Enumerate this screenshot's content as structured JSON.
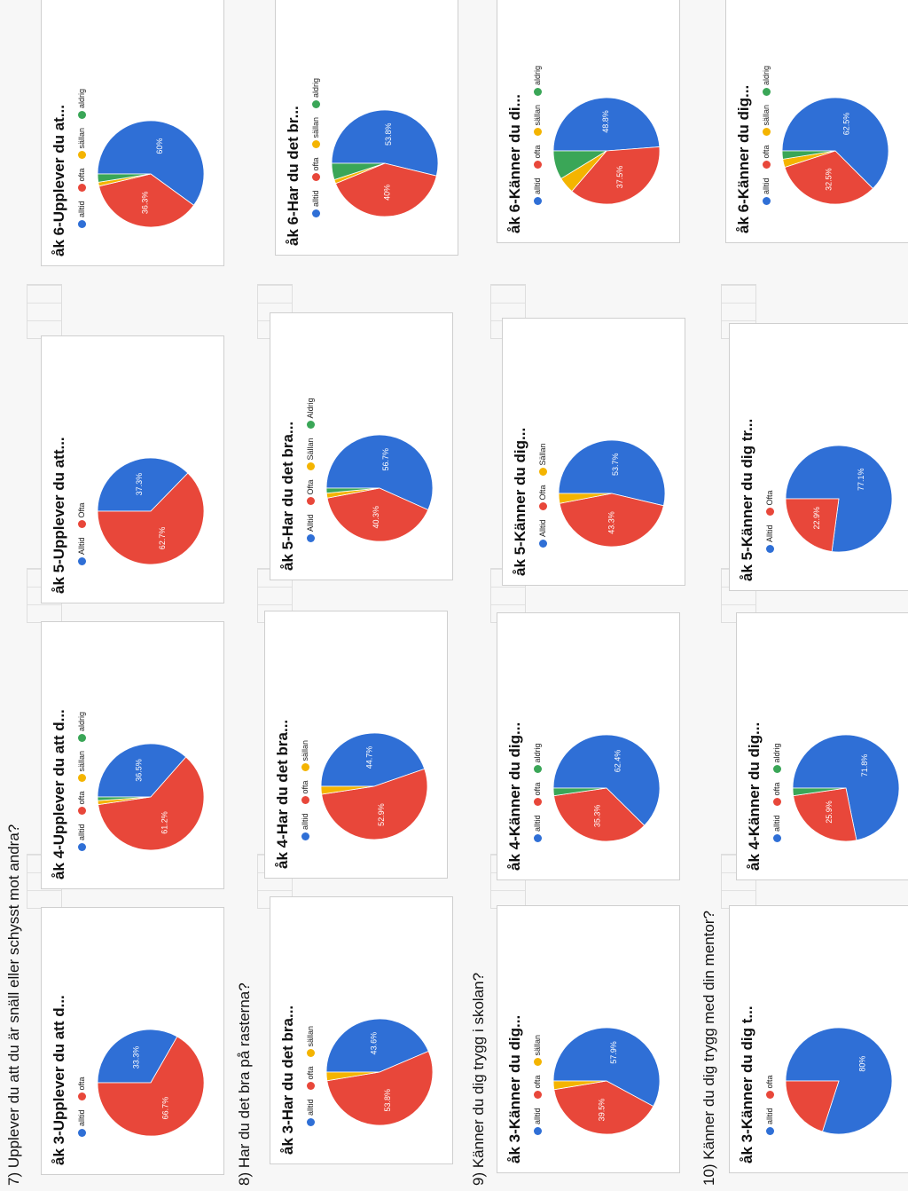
{
  "colors": {
    "blue": "#2f6fd6",
    "red": "#e8473a",
    "yellow": "#f4b400",
    "green": "#3aa657"
  },
  "sections": [
    {
      "title": "7) Upplever du att du är snäll eller schysst mot andra?",
      "charts": [
        {
          "title": "åk 3-Upplever du att d...",
          "legend": [
            "alltid",
            "ofta"
          ],
          "slices": [
            {
              "label": "alltid",
              "value": 33.3,
              "text": "33.3%",
              "color": "blue"
            },
            {
              "label": "ofta",
              "value": 66.7,
              "text": "66.7%",
              "color": "red"
            }
          ]
        },
        {
          "title": "åk 4-Upplever du att d...",
          "legend": [
            "alltid",
            "ofta",
            "sällan",
            "aldrig"
          ],
          "slices": [
            {
              "label": "alltid",
              "value": 36.5,
              "text": "36.5%",
              "color": "blue"
            },
            {
              "label": "ofta",
              "value": 61.2,
              "text": "61.2%",
              "color": "red"
            },
            {
              "label": "sällan",
              "value": 1.2,
              "text": "",
              "color": "yellow"
            },
            {
              "label": "aldrig",
              "value": 1.1,
              "text": "",
              "color": "green"
            }
          ]
        },
        {
          "title": "åk 5-Upplever du att...",
          "legend": [
            "Alltid",
            "Ofta"
          ],
          "slices": [
            {
              "label": "Alltid",
              "value": 37.3,
              "text": "37.3%",
              "color": "blue"
            },
            {
              "label": "Ofta",
              "value": 62.7,
              "text": "62.7%",
              "color": "red"
            }
          ]
        },
        {
          "title": "åk 6-Upplever du at...",
          "legend": [
            "alltid",
            "ofta",
            "sällan",
            "aldrig"
          ],
          "slices": [
            {
              "label": "alltid",
              "value": 60,
              "text": "60%",
              "color": "blue"
            },
            {
              "label": "ofta",
              "value": 36.3,
              "text": "36.3%",
              "color": "red"
            },
            {
              "label": "sällan",
              "value": 1.2,
              "text": "",
              "color": "yellow"
            },
            {
              "label": "aldrig",
              "value": 2.5,
              "text": "",
              "color": "green"
            }
          ]
        }
      ]
    },
    {
      "title": "8) Har du det bra på rasterna?",
      "charts": [
        {
          "title": "åk 3-Har du det bra...",
          "legend": [
            "alltid",
            "ofta",
            "sällan"
          ],
          "slices": [
            {
              "label": "alltid",
              "value": 43.6,
              "text": "43.6%",
              "color": "blue"
            },
            {
              "label": "ofta",
              "value": 53.8,
              "text": "53.8%",
              "color": "red"
            },
            {
              "label": "sällan",
              "value": 2.6,
              "text": "",
              "color": "yellow"
            }
          ]
        },
        {
          "title": "åk 4-Har du det bra...",
          "legend": [
            "alltid",
            "ofta",
            "sällan"
          ],
          "slices": [
            {
              "label": "alltid",
              "value": 44.7,
              "text": "44.7%",
              "color": "blue"
            },
            {
              "label": "ofta",
              "value": 52.9,
              "text": "52.9%",
              "color": "red"
            },
            {
              "label": "sällan",
              "value": 2.4,
              "text": "",
              "color": "yellow"
            }
          ]
        },
        {
          "title": "åk 5-Har du det bra...",
          "legend": [
            "Alltid",
            "Ofta",
            "Sällan",
            "Aldrig"
          ],
          "slices": [
            {
              "label": "Alltid",
              "value": 56.7,
              "text": "56.7%",
              "color": "blue"
            },
            {
              "label": "Ofta",
              "value": 40.3,
              "text": "40.3%",
              "color": "red"
            },
            {
              "label": "Sällan",
              "value": 1.5,
              "text": "",
              "color": "yellow"
            },
            {
              "label": "Aldrig",
              "value": 1.5,
              "text": "",
              "color": "green"
            }
          ]
        },
        {
          "title": "åk 6-Har du det br...",
          "legend": [
            "alltid",
            "ofta",
            "sällan",
            "aldrig"
          ],
          "slices": [
            {
              "label": "alltid",
              "value": 53.8,
              "text": "53.8%",
              "color": "blue"
            },
            {
              "label": "ofta",
              "value": 40,
              "text": "40%",
              "color": "red"
            },
            {
              "label": "sällan",
              "value": 1.2,
              "text": "",
              "color": "yellow"
            },
            {
              "label": "aldrig",
              "value": 5,
              "text": "",
              "color": "green"
            }
          ]
        }
      ]
    },
    {
      "title": "9) Känner du dig trygg i skolan?",
      "charts": [
        {
          "title": "åk 3-Känner du dig...",
          "legend": [
            "alltid",
            "ofta",
            "sällan"
          ],
          "slices": [
            {
              "label": "alltid",
              "value": 57.9,
              "text": "57.9%",
              "color": "blue"
            },
            {
              "label": "ofta",
              "value": 39.5,
              "text": "39.5%",
              "color": "red"
            },
            {
              "label": "sällan",
              "value": 2.6,
              "text": "",
              "color": "yellow"
            }
          ]
        },
        {
          "title": "åk 4-Känner du dig...",
          "legend": [
            "alltid",
            "ofta",
            "aldrig"
          ],
          "slices": [
            {
              "label": "alltid",
              "value": 62.4,
              "text": "62.4%",
              "color": "blue"
            },
            {
              "label": "ofta",
              "value": 35.3,
              "text": "35.3%",
              "color": "red"
            },
            {
              "label": "aldrig",
              "value": 2.3,
              "text": "",
              "color": "green"
            }
          ]
        },
        {
          "title": "åk 5-Känner du dig...",
          "legend": [
            "Alltid",
            "Ofta",
            "Sällan"
          ],
          "slices": [
            {
              "label": "Alltid",
              "value": 53.7,
              "text": "53.7%",
              "color": "blue"
            },
            {
              "label": "Ofta",
              "value": 43.3,
              "text": "43.3%",
              "color": "red"
            },
            {
              "label": "Sällan",
              "value": 3,
              "text": "",
              "color": "yellow"
            }
          ]
        },
        {
          "title": "åk 6-Känner du di...",
          "legend": [
            "alltid",
            "ofta",
            "sällan",
            "aldrig"
          ],
          "slices": [
            {
              "label": "alltid",
              "value": 48.8,
              "text": "48.8%",
              "color": "blue"
            },
            {
              "label": "ofta",
              "value": 37.5,
              "text": "37.5%",
              "color": "red"
            },
            {
              "label": "sällan",
              "value": 5,
              "text": "",
              "color": "yellow"
            },
            {
              "label": "aldrig",
              "value": 8.7,
              "text": "",
              "color": "green"
            }
          ]
        }
      ]
    },
    {
      "title": "10) Känner du dig trygg med din mentor?",
      "charts": [
        {
          "title": "åk 3-Känner du dig t...",
          "legend": [
            "alltid",
            "ofta"
          ],
          "slices": [
            {
              "label": "alltid",
              "value": 80,
              "text": "80%",
              "color": "blue"
            },
            {
              "label": "ofta",
              "value": 20,
              "text": "",
              "color": "red"
            }
          ]
        },
        {
          "title": "åk 4-Känner du dig...",
          "legend": [
            "alltid",
            "ofta",
            "aldrig"
          ],
          "slices": [
            {
              "label": "alltid",
              "value": 71.8,
              "text": "71.8%",
              "color": "blue"
            },
            {
              "label": "ofta",
              "value": 25.9,
              "text": "25.9%",
              "color": "red"
            },
            {
              "label": "aldrig",
              "value": 2.3,
              "text": "",
              "color": "green"
            }
          ]
        },
        {
          "title": "åk 5-Känner du dig tr...",
          "legend": [
            "Alltid",
            "Ofta"
          ],
          "slices": [
            {
              "label": "Alltid",
              "value": 77.1,
              "text": "77.1%",
              "color": "blue"
            },
            {
              "label": "Ofta",
              "value": 22.9,
              "text": "22.9%",
              "color": "red"
            }
          ]
        },
        {
          "title": "åk 6-Känner du dig...",
          "legend": [
            "alltid",
            "ofta",
            "sällan",
            "aldrig"
          ],
          "slices": [
            {
              "label": "alltid",
              "value": 62.5,
              "text": "62.5%",
              "color": "blue"
            },
            {
              "label": "ofta",
              "value": 32.5,
              "text": "32.5%",
              "color": "red"
            },
            {
              "label": "sällan",
              "value": 2.5,
              "text": "",
              "color": "yellow"
            },
            {
              "label": "aldrig",
              "value": 2.5,
              "text": "",
              "color": "green"
            }
          ]
        }
      ]
    }
  ],
  "chart_data": [
    {
      "type": "pie",
      "title": "åk 3-Upplever du att d...",
      "categories": [
        "alltid",
        "ofta"
      ],
      "values": [
        33.3,
        66.7
      ]
    },
    {
      "type": "pie",
      "title": "åk 4-Upplever du att d...",
      "categories": [
        "alltid",
        "ofta",
        "sällan",
        "aldrig"
      ],
      "values": [
        36.5,
        61.2,
        1.2,
        1.1
      ]
    },
    {
      "type": "pie",
      "title": "åk 5-Upplever du att...",
      "categories": [
        "Alltid",
        "Ofta"
      ],
      "values": [
        37.3,
        62.7
      ]
    },
    {
      "type": "pie",
      "title": "åk 6-Upplever du at...",
      "categories": [
        "alltid",
        "ofta",
        "sällan",
        "aldrig"
      ],
      "values": [
        60,
        36.3,
        1.2,
        2.5
      ]
    },
    {
      "type": "pie",
      "title": "åk 3-Har du det bra...",
      "categories": [
        "alltid",
        "ofta",
        "sällan"
      ],
      "values": [
        43.6,
        53.8,
        2.6
      ]
    },
    {
      "type": "pie",
      "title": "åk 4-Har du det bra...",
      "categories": [
        "alltid",
        "ofta",
        "sällan"
      ],
      "values": [
        44.7,
        52.9,
        2.4
      ]
    },
    {
      "type": "pie",
      "title": "åk 5-Har du det bra...",
      "categories": [
        "Alltid",
        "Ofta",
        "Sällan",
        "Aldrig"
      ],
      "values": [
        56.7,
        40.3,
        1.5,
        1.5
      ]
    },
    {
      "type": "pie",
      "title": "åk 6-Har du det br...",
      "categories": [
        "alltid",
        "ofta",
        "sällan",
        "aldrig"
      ],
      "values": [
        53.8,
        40,
        1.2,
        5
      ]
    },
    {
      "type": "pie",
      "title": "åk 3-Känner du dig...",
      "categories": [
        "alltid",
        "ofta",
        "sällan"
      ],
      "values": [
        57.9,
        39.5,
        2.6
      ]
    },
    {
      "type": "pie",
      "title": "åk 4-Känner du dig...",
      "categories": [
        "alltid",
        "ofta",
        "aldrig"
      ],
      "values": [
        62.4,
        35.3,
        2.3
      ]
    },
    {
      "type": "pie",
      "title": "åk 5-Känner du dig...",
      "categories": [
        "Alltid",
        "Ofta",
        "Sällan"
      ],
      "values": [
        53.7,
        43.3,
        3
      ]
    },
    {
      "type": "pie",
      "title": "åk 6-Känner du di...",
      "categories": [
        "alltid",
        "ofta",
        "sällan",
        "aldrig"
      ],
      "values": [
        48.8,
        37.5,
        5,
        8.7
      ]
    },
    {
      "type": "pie",
      "title": "åk 3-Känner du dig t...",
      "categories": [
        "alltid",
        "ofta"
      ],
      "values": [
        80,
        20
      ]
    },
    {
      "type": "pie",
      "title": "åk 4-Känner du dig...",
      "categories": [
        "alltid",
        "ofta",
        "aldrig"
      ],
      "values": [
        71.8,
        25.9,
        2.3
      ]
    },
    {
      "type": "pie",
      "title": "åk 5-Känner du dig tr...",
      "categories": [
        "Alltid",
        "Ofta"
      ],
      "values": [
        77.1,
        22.9
      ]
    },
    {
      "type": "pie",
      "title": "åk 6-Känner du dig...",
      "categories": [
        "alltid",
        "ofta",
        "sällan",
        "aldrig"
      ],
      "values": [
        62.5,
        32.5,
        2.5,
        2.5
      ]
    }
  ]
}
